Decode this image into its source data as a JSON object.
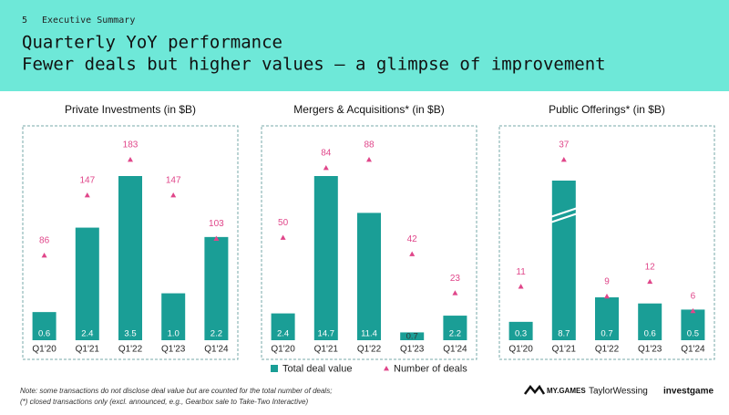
{
  "page": {
    "number": "5",
    "section": "Executive Summary",
    "title_lines": [
      "Quarterly YoY performance",
      "Fewer deals but higher values — a glimpse of improvement"
    ],
    "notes": [
      "Note: some transactions do not disclose deal value but are counted for the total number of deals;",
      "(*) closed transactions only (excl. announced, e.g., Gearbox sale to Take-Two Interactive)"
    ],
    "logos": [
      "MY.GAMES",
      "TaylorWessing",
      "investgame"
    ]
  },
  "chart_data": [
    {
      "type": "bar",
      "title": "Private Investments (in $B)",
      "categories": [
        "Q1'20",
        "Q1'21",
        "Q1'22",
        "Q1'23",
        "Q1'24"
      ],
      "series": [
        {
          "color": "#1a9e96",
          "values": [
            0.6,
            2.4,
            3.5,
            1.0,
            2.2
          ],
          "value_labels": [
            "0.6",
            "2.4",
            "3.5",
            "1.0",
            "2.2"
          ]
        },
        {
          "color": "#e0468a",
          "axis": "y2",
          "values": [
            86,
            147,
            183,
            147,
            103
          ]
        }
      ]
    },
    {
      "type": "bar",
      "title": "Mergers & Acquisitions* (in $B)",
      "categories": [
        "Q1'20",
        "Q1'21",
        "Q1'22",
        "Q1'23",
        "Q1'24"
      ],
      "legend": true,
      "series": [
        {
          "name": "Total deal value",
          "color": "#1a9e96",
          "values": [
            2.4,
            14.7,
            11.4,
            0.7,
            2.2
          ],
          "value_labels": [
            "2.4",
            "14.7",
            "11.4",
            "0.7",
            "2.2"
          ]
        },
        {
          "name": "Number of deals",
          "color": "#e0468a",
          "axis": "y2",
          "values": [
            50,
            84,
            88,
            42,
            23
          ]
        }
      ]
    },
    {
      "type": "bar",
      "title": "Public Offerings* (in $B)",
      "categories": [
        "Q1'20",
        "Q1'21",
        "Q1'22",
        "Q1'23",
        "Q1'24"
      ],
      "series": [
        {
          "color": "#1a9e96",
          "values": [
            0.3,
            8.7,
            0.7,
            0.6,
            0.5
          ],
          "value_labels": [
            "0.3",
            "8.7",
            "0.7",
            "0.6",
            "0.5"
          ]
        },
        {
          "color": "#e0468a",
          "axis": "y2",
          "values": [
            11,
            37,
            9,
            12,
            6
          ]
        }
      ]
    }
  ]
}
